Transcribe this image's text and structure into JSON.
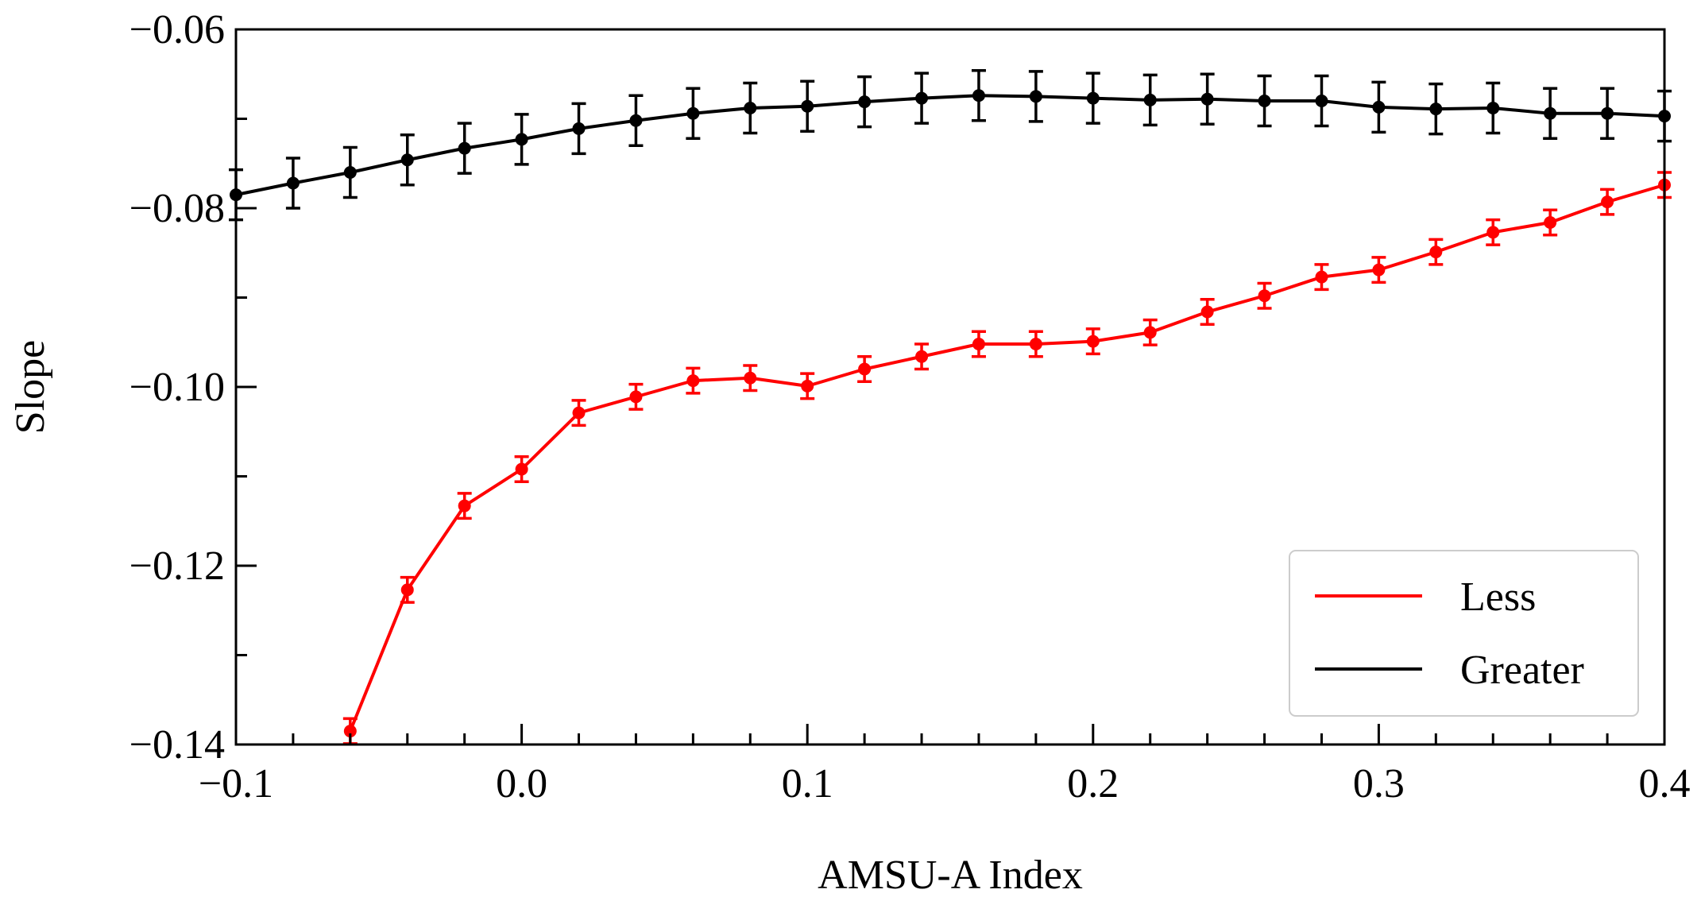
{
  "chart_data": {
    "type": "line",
    "title": "",
    "xlabel": "AMSU-A Index",
    "ylabel": "Slope",
    "xlim": [
      -0.1,
      0.4
    ],
    "ylim": [
      -0.14,
      -0.06
    ],
    "grid": false,
    "legend_position": "bottom-right",
    "x_ticks": [
      -0.1,
      0.0,
      0.1,
      0.2,
      0.3,
      0.4
    ],
    "x_tick_labels": [
      "−0.1",
      "0.0",
      "0.1",
      "0.2",
      "0.3",
      "0.4"
    ],
    "y_ticks": [
      -0.06,
      -0.08,
      -0.1,
      -0.12,
      -0.14
    ],
    "y_tick_labels": [
      "−0.06",
      "−0.08",
      "−0.10",
      "−0.12",
      "−0.14"
    ],
    "series": [
      {
        "name": "Less",
        "color": "#ff0000",
        "x": [
          -0.06,
          -0.04,
          -0.02,
          0.0,
          0.02,
          0.04,
          0.06,
          0.08,
          0.1,
          0.12,
          0.14,
          0.16,
          0.18,
          0.2,
          0.22,
          0.24,
          0.26,
          0.28,
          0.3,
          0.32,
          0.34,
          0.36,
          0.38,
          0.4
        ],
        "y": [
          -0.1385,
          -0.1227,
          -0.1133,
          -0.1092,
          -0.1029,
          -0.1011,
          -0.0993,
          -0.099,
          -0.0999,
          -0.098,
          -0.0966,
          -0.0952,
          -0.0952,
          -0.0949,
          -0.0939,
          -0.0916,
          -0.0898,
          -0.0877,
          -0.0869,
          -0.0849,
          -0.0827,
          -0.0816,
          -0.0793,
          -0.0774
        ],
        "err": [
          0.0014,
          0.0014,
          0.0014,
          0.0014,
          0.0014,
          0.0014,
          0.0014,
          0.0014,
          0.0014,
          0.0014,
          0.0014,
          0.0014,
          0.0014,
          0.0014,
          0.0014,
          0.0014,
          0.0014,
          0.0014,
          0.0014,
          0.0014,
          0.0014,
          0.0014,
          0.0014,
          0.0014
        ]
      },
      {
        "name": "Greater",
        "color": "#000000",
        "x": [
          -0.1,
          -0.08,
          -0.06,
          -0.04,
          -0.02,
          0.0,
          0.02,
          0.04,
          0.06,
          0.08,
          0.1,
          0.12,
          0.14,
          0.16,
          0.18,
          0.2,
          0.22,
          0.24,
          0.26,
          0.28,
          0.3,
          0.32,
          0.34,
          0.36,
          0.38,
          0.4
        ],
        "y": [
          -0.0785,
          -0.0772,
          -0.076,
          -0.0746,
          -0.0733,
          -0.0723,
          -0.0711,
          -0.0702,
          -0.0694,
          -0.0688,
          -0.0686,
          -0.0681,
          -0.0677,
          -0.0674,
          -0.0675,
          -0.0677,
          -0.0679,
          -0.0678,
          -0.068,
          -0.068,
          -0.0687,
          -0.0689,
          -0.0688,
          -0.0694,
          -0.0694,
          -0.0697
        ],
        "err": [
          0.0028,
          0.0028,
          0.0028,
          0.0028,
          0.0028,
          0.0028,
          0.0028,
          0.0028,
          0.0028,
          0.0028,
          0.0028,
          0.0028,
          0.0028,
          0.0028,
          0.0028,
          0.0028,
          0.0028,
          0.0028,
          0.0028,
          0.0028,
          0.0028,
          0.0028,
          0.0028,
          0.0028,
          0.0028,
          0.0028
        ]
      }
    ]
  }
}
